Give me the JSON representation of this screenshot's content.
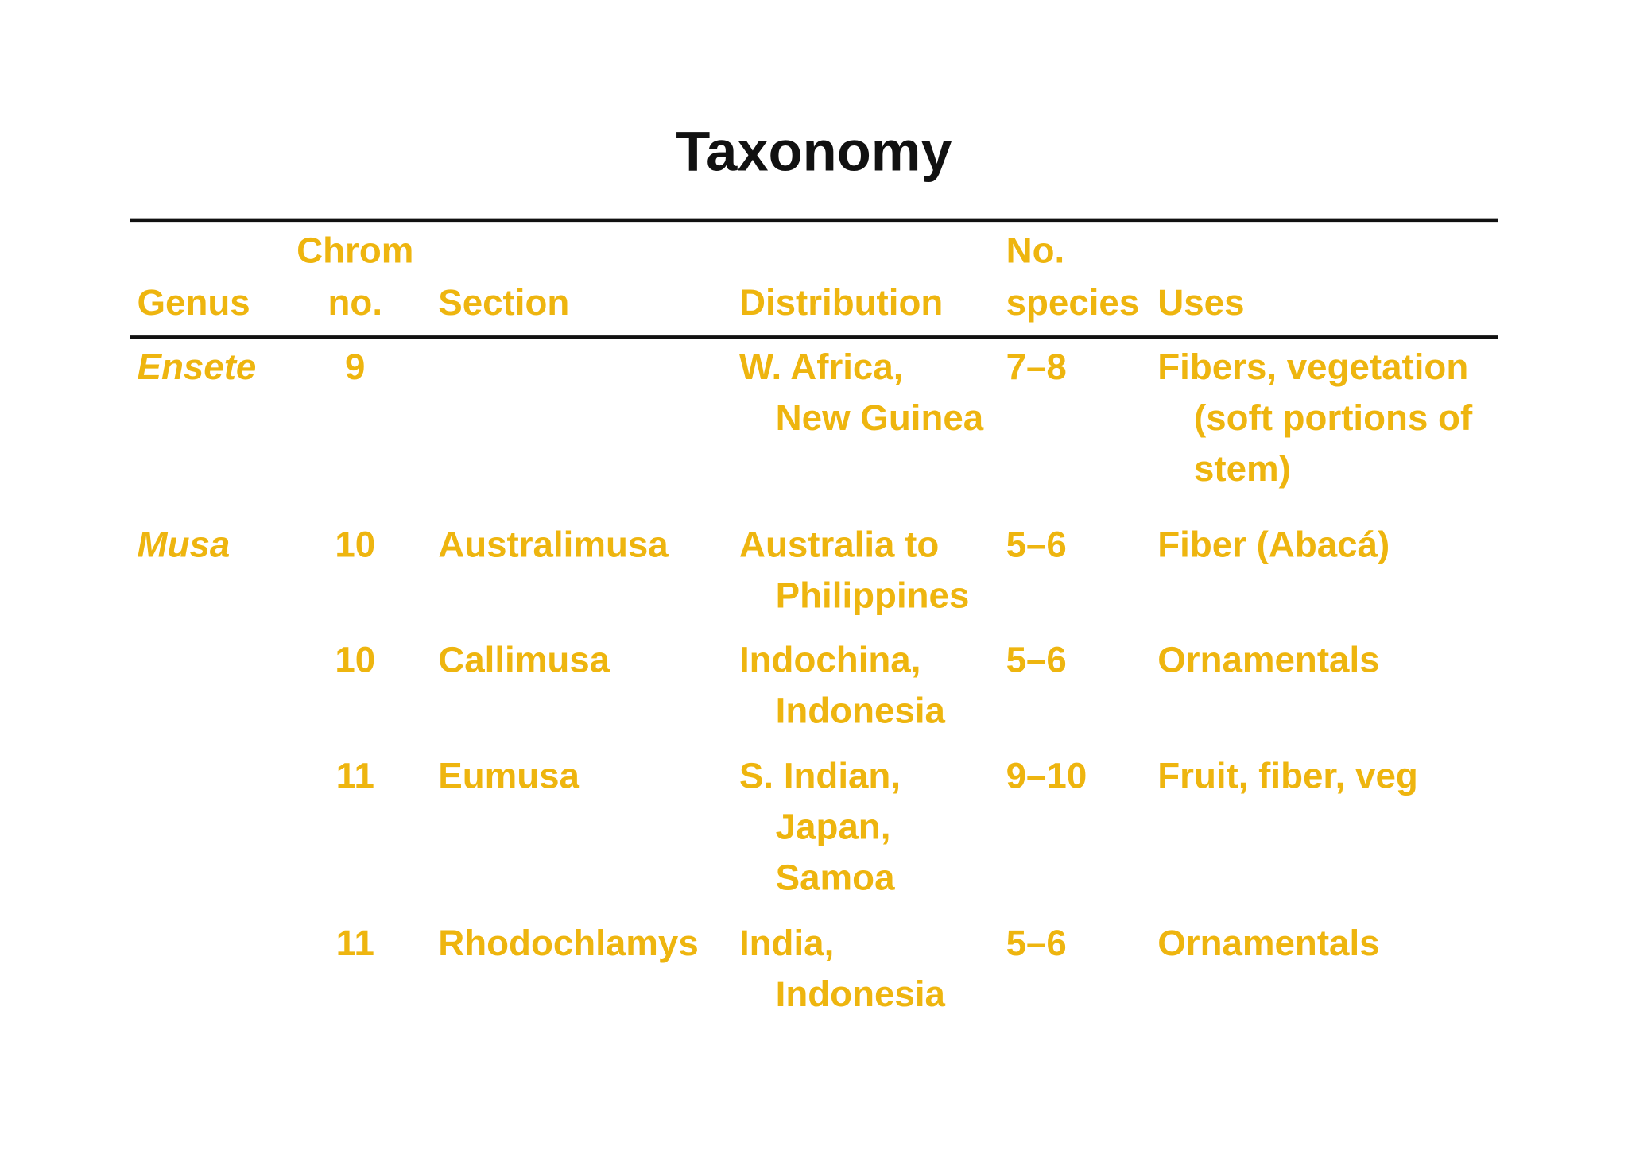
{
  "title": "Taxonomy",
  "table": {
    "headers": [
      [
        "Genus"
      ],
      [
        "Chrom",
        "no."
      ],
      [
        "Section"
      ],
      [
        "Distribution"
      ],
      [
        "No.",
        "species"
      ],
      [
        "Uses"
      ]
    ],
    "rows": [
      [
        [
          "Ensete"
        ],
        [
          "9"
        ],
        [],
        [
          "W. Africa,",
          "New Guinea"
        ],
        [
          "7–8"
        ],
        [
          "Fibers, vegetation",
          "(soft portions of",
          "stem)"
        ]
      ],
      [
        [
          "Musa"
        ],
        [
          "10"
        ],
        [
          "Australimusa"
        ],
        [
          "Australia to",
          "Philippines"
        ],
        [
          "5–6"
        ],
        [
          "Fiber (Abacá)"
        ]
      ],
      [
        [],
        [
          "10"
        ],
        [
          "Callimusa"
        ],
        [
          "Indochina,",
          "Indonesia"
        ],
        [
          "5–6"
        ],
        [
          "Ornamentals"
        ]
      ],
      [
        [],
        [
          "11"
        ],
        [
          "Eumusa"
        ],
        [
          "S. Indian,",
          "Japan,",
          "Samoa"
        ],
        [
          "9–10"
        ],
        [
          "Fruit, fiber, veg"
        ]
      ],
      [
        [],
        [
          "11"
        ],
        [
          "Rhodochlamys"
        ],
        [
          "India,",
          "Indonesia"
        ],
        [
          "5–6"
        ],
        [
          "Ornamentals"
        ]
      ]
    ]
  }
}
